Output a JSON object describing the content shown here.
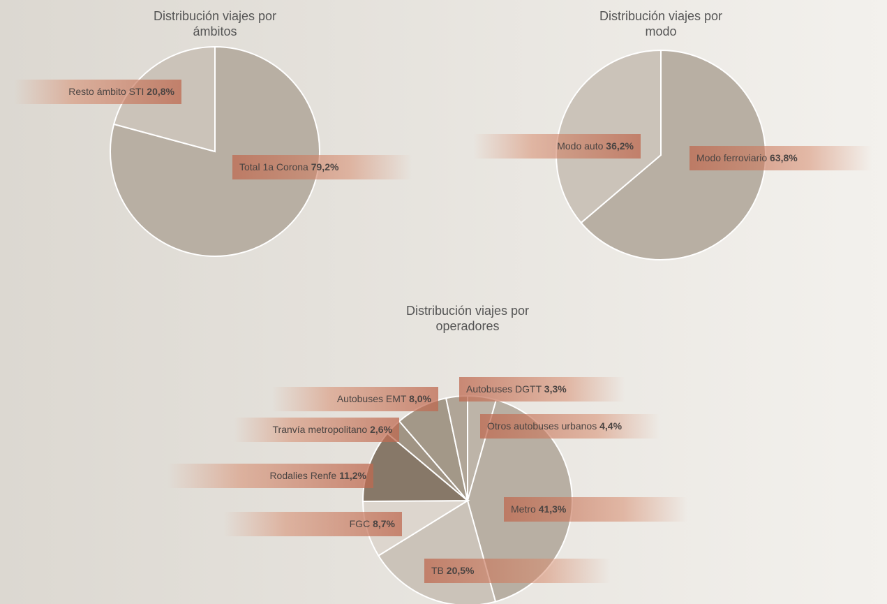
{
  "chart_data": [
    {
      "type": "pie",
      "title": "Distribución viajes por ámbitos",
      "categories": [
        "Total 1a Corona",
        "Resto ámbito STI"
      ],
      "values": [
        79.2,
        20.8
      ],
      "value_labels": [
        "79,2%",
        "20,8%"
      ],
      "colors": [
        "#b8afa3",
        "#cbc3b9"
      ]
    },
    {
      "type": "pie",
      "title": "Distribución viajes por modo",
      "categories": [
        "Modo ferroviario",
        "Modo auto"
      ],
      "values": [
        63.8,
        36.2
      ],
      "value_labels": [
        "63,8%",
        "36,2%"
      ],
      "colors": [
        "#b8afa3",
        "#cbc3b9"
      ]
    },
    {
      "type": "pie",
      "title": "Distribución viajes por operadores",
      "categories": [
        "Otros autobuses urbanos",
        "Metro",
        "TB",
        "FGC",
        "Rodalies Renfe",
        "Tranvía metropolitano",
        "Autobuses EMT",
        "Autobuses DGTT"
      ],
      "values": [
        4.4,
        41.3,
        20.5,
        8.7,
        11.2,
        2.6,
        8.0,
        3.3
      ],
      "value_labels": [
        "4,4%",
        "41,3%",
        "20,5%",
        "8,7%",
        "11,2%",
        "2,6%",
        "8,0%",
        "3,3%"
      ],
      "colors": [
        "#bdb4a8",
        "#b8afa3",
        "#cbc3b9",
        "#ddd6ce",
        "#877868",
        "#a09484",
        "#a39888",
        "#b0a597"
      ]
    }
  ]
}
